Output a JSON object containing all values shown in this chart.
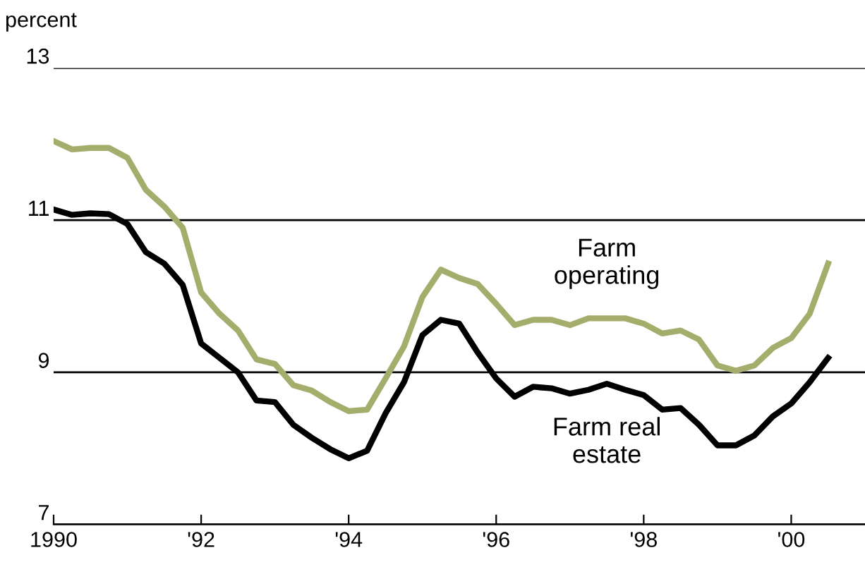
{
  "chart_data": {
    "type": "line",
    "ylabel": "percent",
    "x": [
      1990,
      1990.25,
      1990.5,
      1990.75,
      1991,
      1991.25,
      1991.5,
      1991.75,
      1992,
      1992.25,
      1992.5,
      1992.75,
      1993,
      1993.25,
      1993.5,
      1993.75,
      1994,
      1994.25,
      1994.5,
      1994.75,
      1995,
      1995.25,
      1995.5,
      1995.75,
      1996,
      1996.25,
      1996.5,
      1996.75,
      1997,
      1997.25,
      1997.5,
      1997.75,
      1998,
      1998.25,
      1998.5,
      1998.75,
      1999,
      1999.25,
      1999.5,
      1999.75,
      2000,
      2000.25,
      2000.5
    ],
    "series": [
      {
        "name": "Farm\noperating",
        "color": "#a4ad6b",
        "values": [
          12.04,
          11.93,
          11.95,
          11.95,
          11.82,
          11.4,
          11.18,
          10.9,
          10.05,
          9.77,
          9.55,
          9.17,
          9.11,
          8.83,
          8.76,
          8.61,
          8.49,
          8.51,
          8.92,
          9.34,
          9.99,
          10.35,
          10.24,
          10.16,
          9.9,
          9.62,
          9.69,
          9.69,
          9.62,
          9.71,
          9.71,
          9.71,
          9.64,
          9.51,
          9.55,
          9.43,
          9.09,
          9.02,
          9.09,
          9.32,
          9.45,
          9.77,
          10.43
        ]
      },
      {
        "name": "Farm real\nestate",
        "color": "#000000",
        "values": [
          11.14,
          11.07,
          11.09,
          11.08,
          10.95,
          10.58,
          10.43,
          10.15,
          9.38,
          9.19,
          9.0,
          8.63,
          8.61,
          8.31,
          8.14,
          7.99,
          7.87,
          7.97,
          8.46,
          8.87,
          9.49,
          9.69,
          9.64,
          9.26,
          8.92,
          8.68,
          8.81,
          8.79,
          8.72,
          8.77,
          8.85,
          8.77,
          8.7,
          8.51,
          8.53,
          8.31,
          8.04,
          8.04,
          8.17,
          8.42,
          8.59,
          8.87,
          9.19
        ]
      }
    ],
    "xlim": [
      1990,
      2001
    ],
    "xticks": [
      {
        "value": 1990,
        "label": "1990"
      },
      {
        "value": 1992,
        "label": "'92"
      },
      {
        "value": 1994,
        "label": "'94"
      },
      {
        "value": 1996,
        "label": "'96"
      },
      {
        "value": 1998,
        "label": "'98"
      },
      {
        "value": 2000,
        "label": "'00"
      }
    ],
    "ylim": [
      7,
      13
    ],
    "yticks": [
      7,
      9,
      11,
      13
    ],
    "grid": "y",
    "line_style": "solid",
    "marker": "none"
  }
}
